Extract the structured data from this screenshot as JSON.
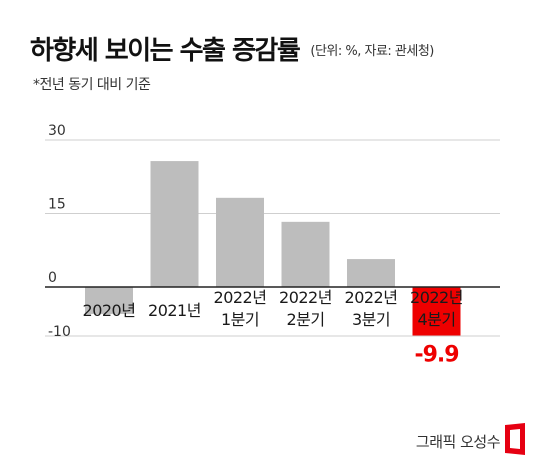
{
  "header": {
    "title": "하향세 보이는 수출 증감률",
    "unit_source": "(단위: %, 자료: 관세청)",
    "note": "*전년 동기 대비 기준"
  },
  "credit": "그래픽 오성수",
  "colors": {
    "bar": "#bdbdbd",
    "highlight": "#ee0000",
    "axis": "#222222",
    "grid": "#cfcfcf"
  },
  "chart_data": {
    "type": "bar",
    "categories": [
      [
        "2020년"
      ],
      [
        "2021년"
      ],
      [
        "2022년",
        "1분기"
      ],
      [
        "2022년",
        "2분기"
      ],
      [
        "2022년",
        "3분기"
      ],
      [
        "2022년",
        "4분기"
      ]
    ],
    "values": [
      -5.5,
      25.7,
      18.2,
      13.3,
      5.7,
      -9.9
    ],
    "highlight_index": 5,
    "data_labels": {
      "5": "-9.9"
    },
    "yticks": [
      30,
      15,
      0,
      -10
    ],
    "ylim": [
      -10,
      30
    ],
    "grid": true,
    "title": "하향세 보이는 수출 증감률",
    "ylabel": "%"
  }
}
